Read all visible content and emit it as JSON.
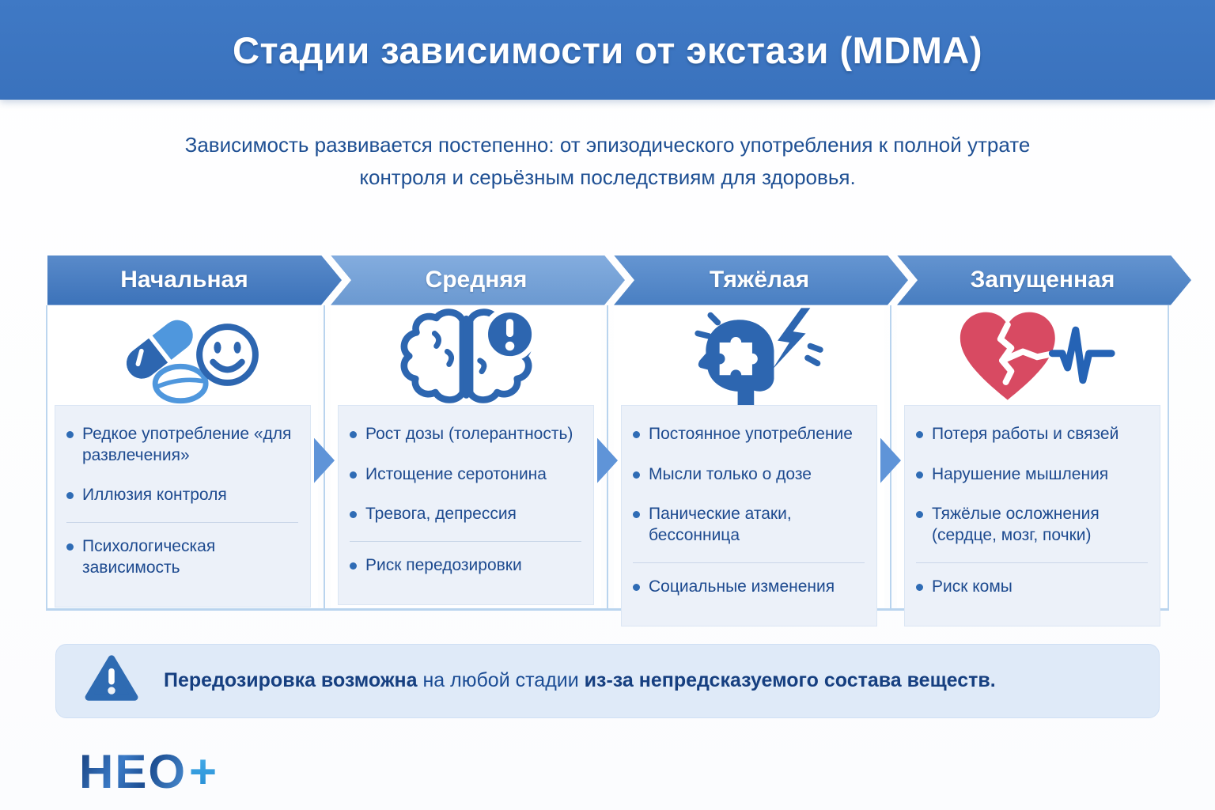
{
  "header": {
    "title": "Стадии зависимости от экстази (MDMA)"
  },
  "intro": {
    "text": "Зависимость развивается постепенно: от эпизодического употребления к полной утрате контроля и серьёзным последствиям для здоровья."
  },
  "stages": [
    {
      "name": "Начальная",
      "header_color": "#3e77c1",
      "icon": "pills-smiley-icon",
      "bullets": [
        "Редкое употребление «для развлечения»",
        "Иллюзия контроля",
        "Психологическая зависимость"
      ]
    },
    {
      "name": "Средняя",
      "header_color": "#6f9fd9",
      "icon": "brain-alert-icon",
      "bullets": [
        "Рост дозы (толерантность)",
        "Истощение серотонина",
        "Тревога, депрессия",
        "Риск передозировки"
      ]
    },
    {
      "name": "Тяжёлая",
      "header_color": "#4c84ca",
      "icon": "head-lightning-icon",
      "bullets": [
        "Постоянное употребление",
        "Мысли только о дозе",
        "Панические атаки, бессонница",
        "Социальные изменения"
      ]
    },
    {
      "name": "Запущенная",
      "header_color": "#4a82c8",
      "icon": "broken-heart-pulse-icon",
      "bullets": [
        "Потеря работы и связей",
        "Нарушение мышления",
        "Тяжёлые осложнения (сердце, мозг, почки)",
        "Риск комы"
      ]
    }
  ],
  "warning": {
    "icon": "warning-triangle-icon",
    "segments": [
      {
        "text": "Передозировка возможна",
        "bold": true
      },
      {
        "text": " на любой стадии ",
        "bold": false
      },
      {
        "text": "из-за непредсказуемого состава веществ.",
        "bold": true
      }
    ]
  },
  "logo": {
    "text": "НЕО",
    "plus": "+"
  },
  "colors": {
    "header_bar": "#3b73c0",
    "accent_blue": "#2d66b0",
    "bullet_text": "#1d4a8f",
    "connector_arrow": "#5f94d8",
    "heart_red": "#d84a62",
    "warning_bg": "#dfeaf8",
    "bullet_box_bg": "#ecf1f9"
  }
}
